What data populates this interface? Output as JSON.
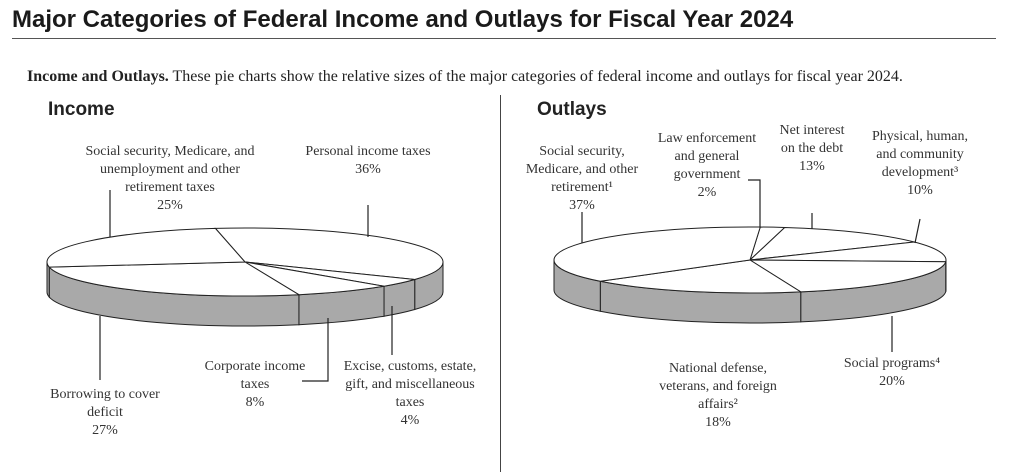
{
  "page": {
    "title": "Major Categories of Federal Income and Outlays for Fiscal Year 2024",
    "intro_lead": "Income and Outlays.",
    "intro": "These pie charts show the relative sizes of the major categories of federal income and outlays for fiscal year 2024."
  },
  "chart_data": [
    {
      "type": "pie",
      "title": "Income",
      "categories": [
        "Personal income taxes",
        "Excise, customs, estate, gift, and miscellaneous taxes",
        "Corporate income taxes",
        "Borrowing to cover deficit",
        "Social security, Medicare, and unemployment and other retirement taxes"
      ],
      "values": [
        36,
        4,
        8,
        27,
        25
      ],
      "value_labels": [
        "36%",
        "4%",
        "8%",
        "27%",
        "25%"
      ],
      "color": "#ffffff",
      "side_color": "#a9a9a9"
    },
    {
      "type": "pie",
      "title": "Outlays",
      "categories": [
        "Law enforcement and general government",
        "Net interest on the debt",
        "Physical, human, and community development³",
        "Social programs⁴",
        "National defense, veterans, and foreign affairs²",
        "Social security, Medicare, and other retirement¹"
      ],
      "values": [
        2,
        13,
        10,
        20,
        18,
        37
      ],
      "value_labels": [
        "2%",
        "13%",
        "10%",
        "20%",
        "18%",
        "37%"
      ],
      "color": "#ffffff",
      "side_color": "#a9a9a9"
    }
  ]
}
